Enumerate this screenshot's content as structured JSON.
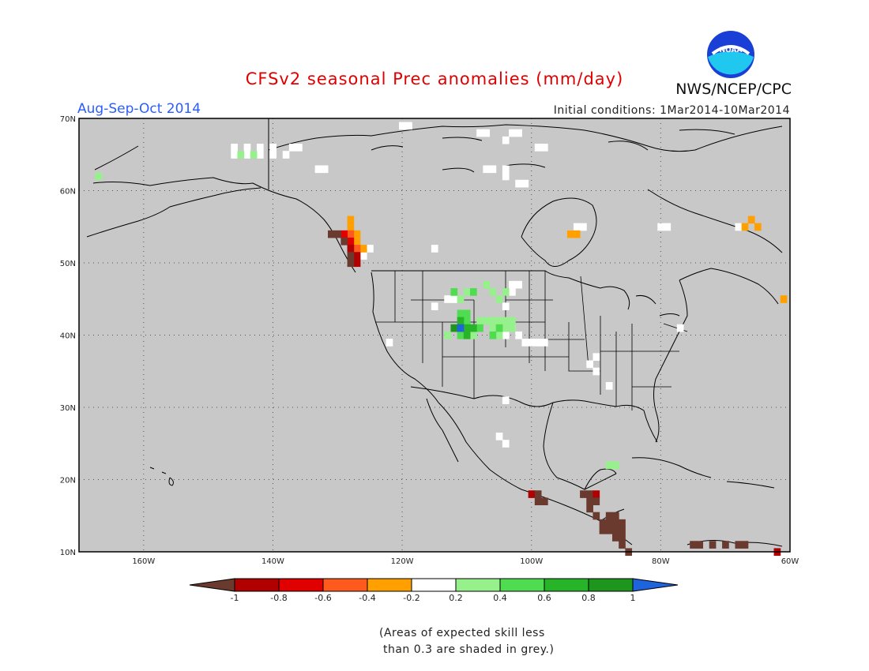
{
  "title": "CFSv2 seasonal Prec anomalies (mm/day)",
  "season": "Aug-Sep-Oct 2014",
  "initial_conditions": "Initial conditions: 1Mar2014-10Mar2014",
  "org": "NWS/NCEP/CPC",
  "logo_text": "NOAA",
  "map": {
    "lon_range": [
      -170,
      -60
    ],
    "lat_range": [
      10,
      70
    ],
    "lat_labels": [
      "10N",
      "20N",
      "30N",
      "40N",
      "50N",
      "60N",
      "70N"
    ],
    "lon_labels": [
      "160W",
      "140W",
      "120W",
      "100W",
      "80W",
      "60W"
    ],
    "background": "#c8c8c8"
  },
  "legend": {
    "labels": [
      "-1",
      "-0.8",
      "-0.6",
      "-0.4",
      "-0.2",
      "0.2",
      "0.4",
      "0.6",
      "0.8",
      "1"
    ],
    "colors": [
      "#6b3a2e",
      "#b00000",
      "#e00000",
      "#ff5a1e",
      "#ffa000",
      "#ffffff",
      "#96f08c",
      "#50dc50",
      "#28b428",
      "#1e961e",
      "#1e64dc"
    ]
  },
  "note": "(Areas of expected skill less\n than 0.3 are shaded in grey.)"
}
